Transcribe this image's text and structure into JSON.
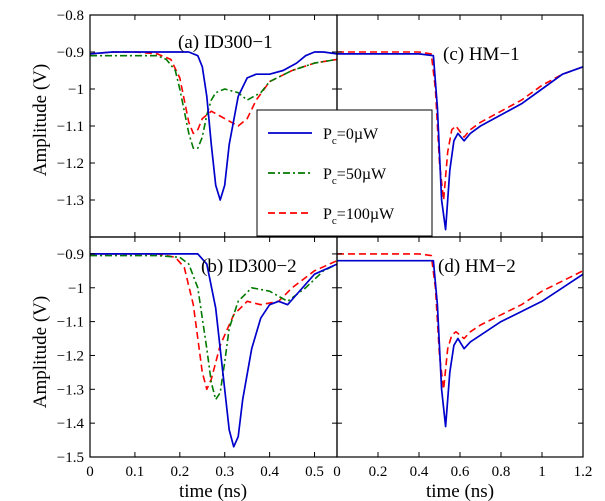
{
  "colors": {
    "s0": "#0000cc",
    "s50": "#007a00",
    "s100": "#ff0000"
  },
  "legend": {
    "entries": [
      {
        "key": "s0",
        "p": "P",
        "sub": "c",
        "rest": "=0µW",
        "dash": "solid"
      },
      {
        "key": "s50",
        "p": "P",
        "sub": "c",
        "rest": "=50µW",
        "dash": "dashdot"
      },
      {
        "key": "s100",
        "p": "P",
        "sub": "c",
        "rest": "=100µW",
        "dash": "dashed"
      }
    ]
  },
  "chart_data": [
    {
      "id": "a",
      "type": "line",
      "title": "(a) ID300−1",
      "ylabel": "Amplitude (V)",
      "xlabel": "",
      "xlim": [
        0,
        0.55
      ],
      "ylim": [
        -1.4,
        -0.8
      ],
      "yticks": [
        -0.8,
        -0.9,
        -1,
        -1.1,
        -1.2,
        -1.3
      ],
      "ytick_labels": [
        "−0.8",
        "−0.9",
        "−1",
        "−1.1",
        "−1.2",
        "−1.3"
      ],
      "series": [
        {
          "key": "s0",
          "x": [
            0,
            0.05,
            0.1,
            0.15,
            0.2,
            0.22,
            0.24,
            0.25,
            0.26,
            0.27,
            0.28,
            0.29,
            0.3,
            0.31,
            0.33,
            0.35,
            0.37,
            0.4,
            0.43,
            0.46,
            0.48,
            0.5,
            0.52,
            0.55
          ],
          "y": [
            -0.905,
            -0.9,
            -0.9,
            -0.9,
            -0.9,
            -0.9,
            -0.91,
            -0.94,
            -1.02,
            -1.15,
            -1.26,
            -1.3,
            -1.26,
            -1.15,
            -1.02,
            -0.97,
            -0.96,
            -0.96,
            -0.95,
            -0.93,
            -0.91,
            -0.9,
            -0.9,
            -0.905
          ]
        },
        {
          "key": "s50",
          "x": [
            0,
            0.05,
            0.1,
            0.15,
            0.17,
            0.19,
            0.2,
            0.21,
            0.22,
            0.23,
            0.24,
            0.25,
            0.26,
            0.27,
            0.28,
            0.3,
            0.33,
            0.35,
            0.38,
            0.4,
            0.45,
            0.5,
            0.55
          ],
          "y": [
            -0.91,
            -0.91,
            -0.91,
            -0.91,
            -0.92,
            -0.95,
            -1.0,
            -1.06,
            -1.12,
            -1.16,
            -1.16,
            -1.13,
            -1.07,
            -1.03,
            -1.01,
            -1.0,
            -1.01,
            -1.03,
            -1.01,
            -0.98,
            -0.95,
            -0.93,
            -0.92
          ]
        },
        {
          "key": "s100",
          "x": [
            0,
            0.05,
            0.1,
            0.15,
            0.18,
            0.2,
            0.21,
            0.22,
            0.23,
            0.24,
            0.25,
            0.27,
            0.3,
            0.33,
            0.35,
            0.37,
            0.4,
            0.45,
            0.5,
            0.55
          ],
          "y": [
            -0.905,
            -0.9,
            -0.9,
            -0.905,
            -0.92,
            -0.97,
            -1.03,
            -1.09,
            -1.12,
            -1.11,
            -1.08,
            -1.06,
            -1.08,
            -1.1,
            -1.08,
            -1.03,
            -0.98,
            -0.95,
            -0.93,
            -0.92
          ]
        }
      ]
    },
    {
      "id": "c",
      "type": "line",
      "title": "(c) HM−1",
      "ylabel": "",
      "xlabel": "",
      "xlim": [
        0,
        1.2
      ],
      "ylim": [
        -1.4,
        -0.8
      ],
      "series": [
        {
          "key": "s0",
          "x": [
            0,
            0.1,
            0.2,
            0.3,
            0.4,
            0.47,
            0.49,
            0.51,
            0.53,
            0.55,
            0.57,
            0.59,
            0.62,
            0.65,
            0.7,
            0.8,
            0.9,
            1.0,
            1.1,
            1.2
          ],
          "y": [
            -0.905,
            -0.905,
            -0.905,
            -0.905,
            -0.905,
            -0.91,
            -1.05,
            -1.3,
            -1.38,
            -1.22,
            -1.14,
            -1.12,
            -1.14,
            -1.12,
            -1.1,
            -1.07,
            -1.04,
            -1.0,
            -0.96,
            -0.94
          ]
        },
        {
          "key": "s100",
          "x": [
            0,
            0.1,
            0.2,
            0.3,
            0.4,
            0.46,
            0.48,
            0.5,
            0.52,
            0.54,
            0.56,
            0.58,
            0.62,
            0.65,
            0.7,
            0.8,
            0.9,
            1.0,
            1.1,
            1.2
          ],
          "y": [
            -0.9,
            -0.9,
            -0.9,
            -0.9,
            -0.9,
            -0.905,
            -1.0,
            -1.2,
            -1.3,
            -1.17,
            -1.11,
            -1.1,
            -1.13,
            -1.11,
            -1.09,
            -1.06,
            -1.03,
            -0.99,
            -0.96,
            -0.94
          ]
        }
      ]
    },
    {
      "id": "b",
      "type": "line",
      "title": "(b) ID300−2",
      "ylabel": "Amplitude (V)",
      "xlabel": "time (ns)",
      "xlim": [
        0,
        0.55
      ],
      "ylim": [
        -1.5,
        -0.85
      ],
      "yticks": [
        -0.9,
        -1,
        -1.1,
        -1.2,
        -1.3,
        -1.4,
        -1.5
      ],
      "ytick_labels": [
        "−0.9",
        "−1",
        "−1.1",
        "−1.2",
        "−1.3",
        "−1.4",
        "−1.5"
      ],
      "xticks": [
        0,
        0.1,
        0.2,
        0.3,
        0.4,
        0.5
      ],
      "xtick_labels": [
        "0",
        "0.1",
        "0.2",
        "0.3",
        "0.4",
        "0.5"
      ],
      "series": [
        {
          "key": "s0",
          "x": [
            0,
            0.05,
            0.1,
            0.15,
            0.2,
            0.24,
            0.26,
            0.28,
            0.29,
            0.3,
            0.31,
            0.32,
            0.33,
            0.34,
            0.36,
            0.38,
            0.4,
            0.42,
            0.44,
            0.46,
            0.5,
            0.55
          ],
          "y": [
            -0.9,
            -0.9,
            -0.9,
            -0.9,
            -0.9,
            -0.9,
            -0.93,
            -1.06,
            -1.18,
            -1.3,
            -1.42,
            -1.47,
            -1.44,
            -1.33,
            -1.18,
            -1.09,
            -1.05,
            -1.04,
            -1.05,
            -1.02,
            -0.96,
            -0.93
          ]
        },
        {
          "key": "s50",
          "x": [
            0,
            0.05,
            0.1,
            0.15,
            0.2,
            0.22,
            0.24,
            0.26,
            0.27,
            0.28,
            0.29,
            0.3,
            0.31,
            0.33,
            0.36,
            0.4,
            0.44,
            0.48,
            0.52,
            0.55
          ],
          "y": [
            -0.905,
            -0.905,
            -0.905,
            -0.905,
            -0.91,
            -0.93,
            -1.0,
            -1.18,
            -1.28,
            -1.33,
            -1.31,
            -1.22,
            -1.12,
            -1.04,
            -1.0,
            -1.01,
            -1.04,
            -1.0,
            -0.95,
            -0.93
          ]
        },
        {
          "key": "s100",
          "x": [
            0,
            0.05,
            0.1,
            0.15,
            0.19,
            0.21,
            0.23,
            0.24,
            0.25,
            0.26,
            0.27,
            0.29,
            0.32,
            0.35,
            0.38,
            0.42,
            0.45,
            0.5,
            0.55
          ],
          "y": [
            -0.9,
            -0.9,
            -0.9,
            -0.9,
            -0.91,
            -0.94,
            -1.05,
            -1.15,
            -1.25,
            -1.3,
            -1.27,
            -1.17,
            -1.08,
            -1.04,
            -1.05,
            -1.04,
            -1.0,
            -0.95,
            -0.92
          ]
        }
      ]
    },
    {
      "id": "d",
      "type": "line",
      "title": "(d) HM−2",
      "ylabel": "",
      "xlabel": "time (ns)",
      "xlim": [
        0,
        1.2
      ],
      "ylim": [
        -1.5,
        -0.85
      ],
      "xticks": [
        0,
        0.2,
        0.4,
        0.6,
        0.8,
        1,
        1.2
      ],
      "xtick_labels": [
        "0",
        "0.2",
        "0.4",
        "0.6",
        "0.8",
        "1",
        "1.2"
      ],
      "series": [
        {
          "key": "s0",
          "x": [
            0,
            0.1,
            0.2,
            0.3,
            0.4,
            0.47,
            0.49,
            0.51,
            0.53,
            0.55,
            0.57,
            0.59,
            0.62,
            0.65,
            0.7,
            0.8,
            0.9,
            1.0,
            1.1,
            1.2
          ],
          "y": [
            -0.92,
            -0.92,
            -0.92,
            -0.92,
            -0.92,
            -0.92,
            -1.05,
            -1.3,
            -1.41,
            -1.25,
            -1.17,
            -1.15,
            -1.18,
            -1.16,
            -1.14,
            -1.1,
            -1.07,
            -1.04,
            -1.0,
            -0.96
          ]
        },
        {
          "key": "s100",
          "x": [
            0,
            0.1,
            0.2,
            0.3,
            0.4,
            0.46,
            0.48,
            0.5,
            0.52,
            0.54,
            0.56,
            0.58,
            0.62,
            0.65,
            0.7,
            0.8,
            0.9,
            1.0,
            1.1,
            1.2
          ],
          "y": [
            -0.9,
            -0.9,
            -0.9,
            -0.9,
            -0.9,
            -0.905,
            -1.0,
            -1.2,
            -1.3,
            -1.18,
            -1.14,
            -1.13,
            -1.15,
            -1.13,
            -1.11,
            -1.08,
            -1.05,
            -1.01,
            -0.98,
            -0.95
          ]
        }
      ]
    }
  ]
}
